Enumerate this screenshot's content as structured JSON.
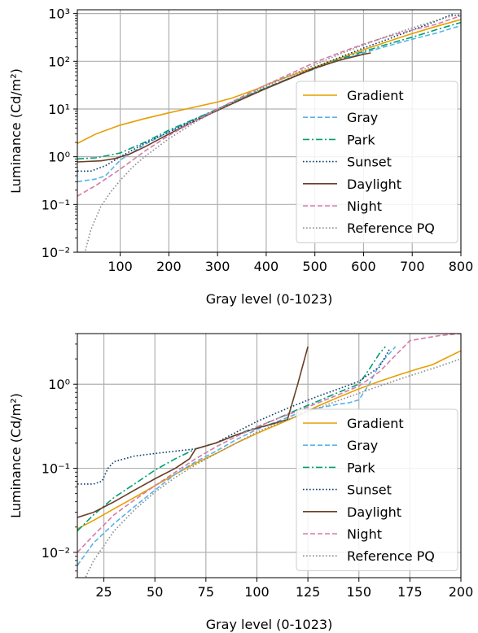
{
  "colors": {
    "Gradient": "#E69F00",
    "Gray": "#56B4E9",
    "Park": "#009E73",
    "Sunset": "#0B3D6E",
    "Daylight": "#6B3E26",
    "Night": "#D67BA8",
    "Reference PQ": "#8C8C8C"
  },
  "chart_data": [
    {
      "type": "line",
      "xlabel": "Gray level (0-1023)",
      "ylabel": "Luminance (Cd/m²)",
      "xlim": [
        12,
        800
      ],
      "ylim": [
        0.01,
        1200
      ],
      "yscale": "log",
      "xticks": [
        100,
        200,
        300,
        400,
        500,
        600,
        700,
        800
      ],
      "xtick_labels": [
        "100",
        "200",
        "300",
        "400",
        "500",
        "600",
        "700",
        "800"
      ],
      "yticks": [
        0.01,
        0.1,
        1,
        10,
        100,
        1000
      ],
      "ytick_labels": [
        "10⁻²",
        "10⁻¹",
        "10⁰",
        "10¹",
        "10²",
        "10³"
      ],
      "grid": true,
      "legend_position": "lower-right",
      "series": [
        {
          "name": "Gradient",
          "style": "solid",
          "x": [
            12,
            50,
            100,
            150,
            200,
            250,
            300,
            330,
            380,
            400,
            450,
            500,
            550,
            600,
            650,
            700,
            750,
            800
          ],
          "y": [
            1.9,
            3.0,
            4.6,
            6.3,
            8.3,
            10.8,
            14,
            17,
            26,
            32,
            50,
            75,
            115,
            175,
            260,
            380,
            540,
            750
          ]
        },
        {
          "name": "Gray",
          "style": "dashed",
          "x": [
            12,
            50,
            70,
            100,
            150,
            200,
            250,
            300,
            350,
            400,
            450,
            500,
            550,
            600,
            650,
            700,
            750,
            800
          ],
          "y": [
            0.3,
            0.34,
            0.4,
            0.85,
            1.8,
            3.3,
            5.9,
            10,
            17,
            28,
            45,
            72,
            105,
            150,
            210,
            290,
            390,
            560
          ]
        },
        {
          "name": "Park",
          "style": "dashdot",
          "x": [
            12,
            50,
            100,
            150,
            200,
            250,
            300,
            350,
            400,
            450,
            500,
            550,
            600,
            650,
            700,
            750,
            800
          ],
          "y": [
            0.9,
            0.95,
            1.2,
            2.0,
            3.6,
            6.0,
            10,
            17,
            28,
            45,
            70,
            110,
            160,
            230,
            320,
            460,
            650
          ]
        },
        {
          "name": "Sunset",
          "style": "dotted",
          "x": [
            12,
            40,
            70,
            100,
            150,
            200,
            250,
            300,
            350,
            400,
            450,
            500,
            550,
            600,
            650,
            700,
            750,
            780,
            800
          ],
          "y": [
            0.5,
            0.5,
            0.65,
            1.0,
            1.9,
            3.3,
            5.7,
            9.5,
            16,
            27,
            45,
            75,
            120,
            190,
            290,
            450,
            700,
            950,
            880
          ]
        },
        {
          "name": "Daylight",
          "style": "solid",
          "x": [
            12,
            60,
            90,
            120,
            150,
            200,
            250,
            300,
            350,
            400,
            450,
            500,
            550,
            600,
            615
          ],
          "y": [
            0.78,
            0.82,
            0.92,
            1.15,
            1.6,
            3.0,
            5.4,
            9.3,
            16,
            27,
            44,
            72,
            105,
            140,
            150
          ]
        },
        {
          "name": "Night",
          "style": "dashed",
          "x": [
            12,
            50,
            80,
            100,
            150,
            200,
            250,
            300,
            350,
            400,
            450,
            500,
            550,
            600,
            650,
            700,
            750,
            800
          ],
          "y": [
            0.15,
            0.25,
            0.4,
            0.55,
            1.3,
            2.8,
            5.4,
            10,
            18,
            32,
            55,
            95,
            150,
            230,
            330,
            450,
            600,
            900
          ]
        },
        {
          "name": "Reference PQ",
          "style": "dotted",
          "x": [
            25,
            40,
            60,
            80,
            100,
            125,
            150,
            200,
            250,
            300,
            350,
            400,
            450,
            500,
            550,
            600,
            650,
            700,
            750,
            800
          ],
          "y": [
            0.008,
            0.03,
            0.09,
            0.18,
            0.32,
            0.6,
            1.0,
            2.4,
            5.0,
            9.6,
            17,
            30,
            51,
            85,
            140,
            220,
            340,
            500,
            720,
            1000
          ]
        }
      ]
    },
    {
      "type": "line",
      "xlabel": "Gray level (0-1023)",
      "ylabel": "Luminance (Cd/m²)",
      "xlim": [
        12,
        200
      ],
      "ylim": [
        0.005,
        4
      ],
      "yscale": "log",
      "xticks": [
        25,
        50,
        75,
        100,
        125,
        150,
        175,
        200
      ],
      "xtick_labels": [
        "25",
        "50",
        "75",
        "100",
        "125",
        "150",
        "175",
        "200"
      ],
      "yticks": [
        0.01,
        0.1,
        1
      ],
      "ytick_labels": [
        "10⁻²",
        "10⁻¹",
        "10⁰"
      ],
      "grid": true,
      "legend_position": "lower-right",
      "series": [
        {
          "name": "Gradient",
          "style": "solid",
          "x": [
            12,
            20,
            30,
            40,
            50,
            60,
            70,
            80,
            90,
            100,
            110,
            120,
            130,
            140,
            150,
            160,
            170,
            180,
            186,
            190,
            200
          ],
          "y": [
            0.019,
            0.024,
            0.033,
            0.045,
            0.062,
            0.085,
            0.115,
            0.15,
            0.2,
            0.26,
            0.33,
            0.42,
            0.55,
            0.7,
            0.88,
            1.08,
            1.3,
            1.55,
            1.7,
            1.9,
            2.5
          ]
        },
        {
          "name": "Gray",
          "style": "dashed",
          "x": [
            12,
            20,
            30,
            40,
            50,
            60,
            70,
            80,
            90,
            100,
            110,
            120,
            130,
            140,
            145,
            150,
            155,
            160,
            168
          ],
          "y": [
            0.007,
            0.013,
            0.022,
            0.035,
            0.055,
            0.085,
            0.12,
            0.16,
            0.22,
            0.29,
            0.36,
            0.45,
            0.52,
            0.58,
            0.6,
            0.65,
            1.0,
            1.7,
            2.8
          ]
        },
        {
          "name": "Park",
          "style": "dashdot",
          "x": [
            12,
            20,
            30,
            40,
            50,
            60,
            70,
            80,
            90,
            100,
            110,
            120,
            130,
            140,
            150,
            155,
            160,
            163
          ],
          "y": [
            0.018,
            0.028,
            0.045,
            0.065,
            0.095,
            0.13,
            0.17,
            0.2,
            0.25,
            0.31,
            0.39,
            0.5,
            0.63,
            0.8,
            1.0,
            1.5,
            2.3,
            2.8
          ]
        },
        {
          "name": "Sunset",
          "style": "dotted",
          "x": [
            12,
            20,
            24,
            27,
            30,
            40,
            50,
            60,
            70,
            80,
            90,
            100,
            110,
            120,
            130,
            140,
            150,
            160,
            165
          ],
          "y": [
            0.065,
            0.065,
            0.07,
            0.1,
            0.12,
            0.14,
            0.15,
            0.16,
            0.17,
            0.2,
            0.27,
            0.36,
            0.46,
            0.58,
            0.72,
            0.88,
            1.08,
            1.6,
            2.6
          ]
        },
        {
          "name": "Daylight",
          "style": "solid",
          "x": [
            12,
            20,
            30,
            40,
            50,
            60,
            67,
            70,
            80,
            90,
            100,
            110,
            115,
            120,
            125
          ],
          "y": [
            0.026,
            0.03,
            0.04,
            0.055,
            0.075,
            0.1,
            0.13,
            0.17,
            0.2,
            0.25,
            0.3,
            0.35,
            0.38,
            1.0,
            2.8
          ]
        },
        {
          "name": "Night",
          "style": "dashed",
          "x": [
            12,
            20,
            30,
            40,
            50,
            60,
            70,
            80,
            90,
            100,
            110,
            120,
            130,
            140,
            150,
            160,
            175,
            190,
            200
          ],
          "y": [
            0.01,
            0.016,
            0.028,
            0.042,
            0.062,
            0.09,
            0.13,
            0.18,
            0.24,
            0.31,
            0.39,
            0.48,
            0.6,
            0.75,
            0.95,
            1.4,
            3.3,
            3.8,
            4.0
          ]
        },
        {
          "name": "Reference PQ",
          "style": "dotted",
          "x": [
            14,
            20,
            25,
            30,
            40,
            50,
            60,
            70,
            80,
            90,
            100,
            110,
            120,
            130,
            140,
            150,
            160,
            170,
            180,
            190,
            200
          ],
          "y": [
            0.004,
            0.008,
            0.012,
            0.018,
            0.032,
            0.052,
            0.078,
            0.11,
            0.15,
            0.2,
            0.27,
            0.34,
            0.42,
            0.52,
            0.64,
            0.78,
            0.95,
            1.15,
            1.38,
            1.65,
            2.0
          ]
        }
      ]
    }
  ]
}
